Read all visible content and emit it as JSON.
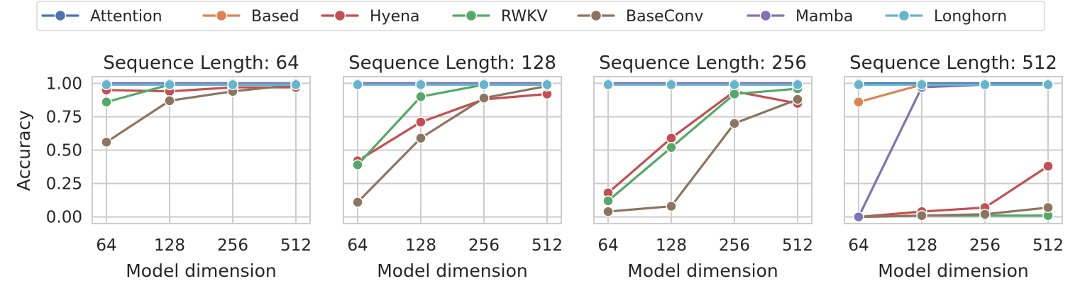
{
  "chart_data": {
    "type": "line",
    "ylabel": "Accuracy",
    "xlabel": "Model dimension",
    "x": [
      "64",
      "128",
      "256",
      "512"
    ],
    "ylim": [
      -0.05,
      1.05
    ],
    "yticks": [
      0.0,
      0.25,
      0.5,
      0.75,
      1.0
    ],
    "ytick_labels": [
      "0.00",
      "0.25",
      "0.50",
      "0.75",
      "1.00"
    ],
    "grid": true,
    "legend_position": "top",
    "legend": [
      {
        "name": "Attention",
        "color": "#4c72b0"
      },
      {
        "name": "Based",
        "color": "#dd8452"
      },
      {
        "name": "Hyena",
        "color": "#c44e52"
      },
      {
        "name": "RWKV",
        "color": "#55a868"
      },
      {
        "name": "BaseConv",
        "color": "#8c7560"
      },
      {
        "name": "Mamba",
        "color": "#8172b3"
      },
      {
        "name": "Longhorn",
        "color": "#64b5cd"
      }
    ],
    "panels": [
      {
        "title": "Sequence Length: 64",
        "series": [
          {
            "name": "Attention",
            "values": [
              1.0,
              1.0,
              1.0,
              1.0
            ]
          },
          {
            "name": "Based",
            "values": [
              1.0,
              1.0,
              1.0,
              1.0
            ]
          },
          {
            "name": "Hyena",
            "values": [
              0.95,
              0.94,
              0.97,
              0.97
            ]
          },
          {
            "name": "RWKV",
            "values": [
              0.86,
              0.99,
              0.99,
              0.99
            ]
          },
          {
            "name": "BaseConv",
            "values": [
              0.56,
              0.87,
              0.94,
              0.99
            ]
          },
          {
            "name": "Mamba",
            "values": [
              1.0,
              1.0,
              1.0,
              1.0
            ]
          },
          {
            "name": "Longhorn",
            "values": [
              0.99,
              0.99,
              0.99,
              0.99
            ]
          }
        ]
      },
      {
        "title": "Sequence Length: 128",
        "series": [
          {
            "name": "Attention",
            "values": [
              1.0,
              1.0,
              1.0,
              1.0
            ]
          },
          {
            "name": "Based",
            "values": [
              1.0,
              1.0,
              1.0,
              1.0
            ]
          },
          {
            "name": "Hyena",
            "values": [
              0.42,
              0.71,
              0.88,
              0.92
            ]
          },
          {
            "name": "RWKV",
            "values": [
              0.39,
              0.9,
              0.99,
              0.99
            ]
          },
          {
            "name": "BaseConv",
            "values": [
              0.11,
              0.59,
              0.89,
              0.98
            ]
          },
          {
            "name": "Mamba",
            "values": [
              1.0,
              1.0,
              1.0,
              1.0
            ]
          },
          {
            "name": "Longhorn",
            "values": [
              0.99,
              0.99,
              0.99,
              0.99
            ]
          }
        ]
      },
      {
        "title": "Sequence Length: 256",
        "series": [
          {
            "name": "Attention",
            "values": [
              1.0,
              1.0,
              1.0,
              1.0
            ]
          },
          {
            "name": "Based",
            "values": [
              1.0,
              1.0,
              1.0,
              1.0
            ]
          },
          {
            "name": "Hyena",
            "values": [
              0.18,
              0.59,
              0.94,
              0.85
            ]
          },
          {
            "name": "RWKV",
            "values": [
              0.12,
              0.52,
              0.92,
              0.96
            ]
          },
          {
            "name": "BaseConv",
            "values": [
              0.04,
              0.08,
              0.7,
              0.88
            ]
          },
          {
            "name": "Mamba",
            "values": [
              1.0,
              1.0,
              1.0,
              1.0
            ]
          },
          {
            "name": "Longhorn",
            "values": [
              0.99,
              0.99,
              0.99,
              0.99
            ]
          }
        ]
      },
      {
        "title": "Sequence Length: 512",
        "series": [
          {
            "name": "Attention",
            "values": [
              1.0,
              1.0,
              1.0,
              1.0
            ]
          },
          {
            "name": "Based",
            "values": [
              0.86,
              0.99,
              0.99,
              0.99
            ]
          },
          {
            "name": "Hyena",
            "values": [
              0.0,
              0.04,
              0.07,
              0.38
            ]
          },
          {
            "name": "RWKV",
            "values": [
              0.0,
              0.01,
              0.01,
              0.01
            ]
          },
          {
            "name": "BaseConv",
            "values": [
              0.0,
              0.01,
              0.02,
              0.07
            ]
          },
          {
            "name": "Mamba",
            "values": [
              0.0,
              0.97,
              0.99,
              0.99
            ]
          },
          {
            "name": "Longhorn",
            "values": [
              0.99,
              0.99,
              0.99,
              0.99
            ]
          }
        ]
      }
    ]
  }
}
